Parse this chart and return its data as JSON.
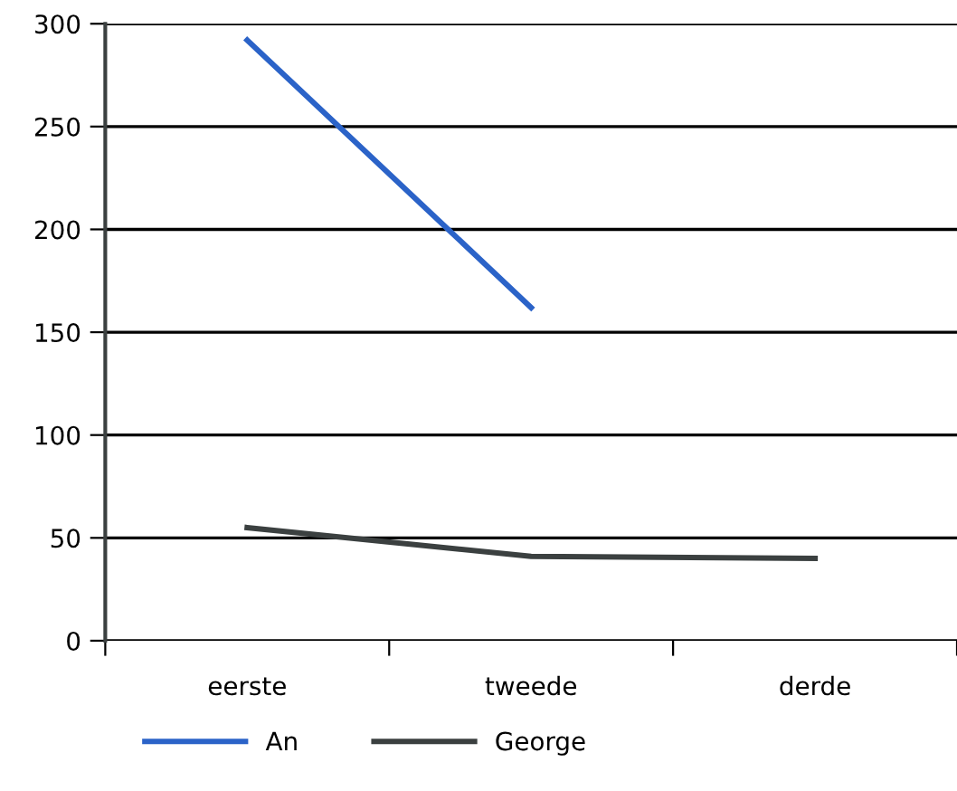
{
  "chart_data": {
    "type": "line",
    "categories": [
      "eerste",
      "tweede",
      "derde"
    ],
    "series": [
      {
        "name": "An",
        "color": "#2b63c8",
        "values": [
          292,
          162,
          null
        ]
      },
      {
        "name": "George",
        "color": "#3b4040",
        "values": [
          55,
          41,
          40
        ]
      }
    ],
    "ylim": [
      0,
      300
    ],
    "yticks": [
      0,
      50,
      100,
      150,
      200,
      250,
      300
    ],
    "grid": "y",
    "legend": "bottom",
    "marker": "none",
    "line_style": "solid"
  }
}
